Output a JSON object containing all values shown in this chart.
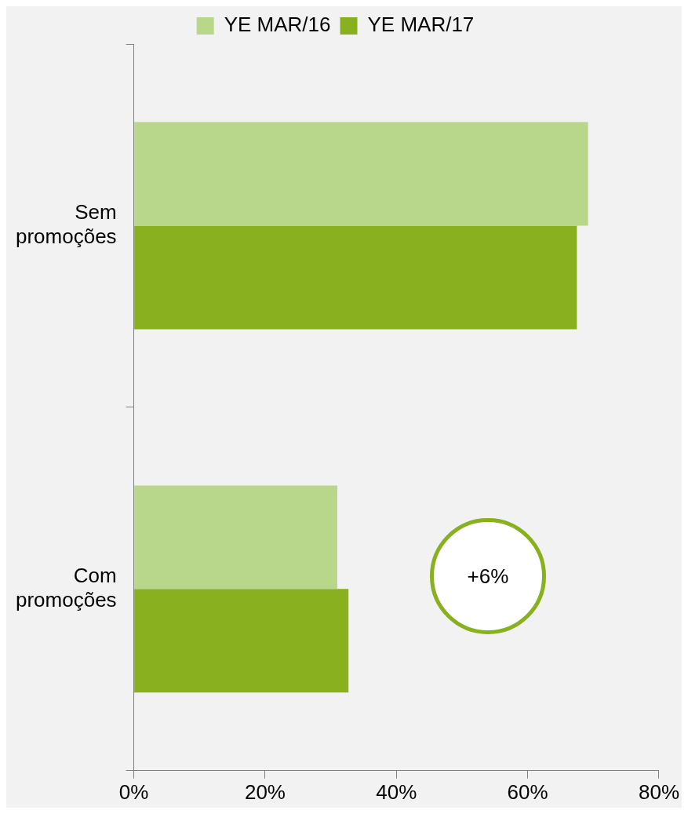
{
  "chart_data": {
    "type": "bar",
    "orientation": "horizontal",
    "categories": [
      "Sem promoções",
      "Com promoções"
    ],
    "series": [
      {
        "name": "YE MAR/16",
        "color": "#b9d78b",
        "values": [
          69.2,
          31.0
        ]
      },
      {
        "name": "YE MAR/17",
        "color": "#88b01f",
        "values": [
          67.5,
          32.7
        ]
      }
    ],
    "xlim": [
      0,
      80
    ],
    "xticks": [
      {
        "value": 0,
        "label": "0%"
      },
      {
        "value": 20,
        "label": "20%"
      },
      {
        "value": 40,
        "label": "40%"
      },
      {
        "value": 60,
        "label": "60%"
      },
      {
        "value": 80,
        "label": "80%"
      }
    ],
    "grid": false,
    "legend": "top",
    "annotations": [
      "+6%"
    ]
  }
}
